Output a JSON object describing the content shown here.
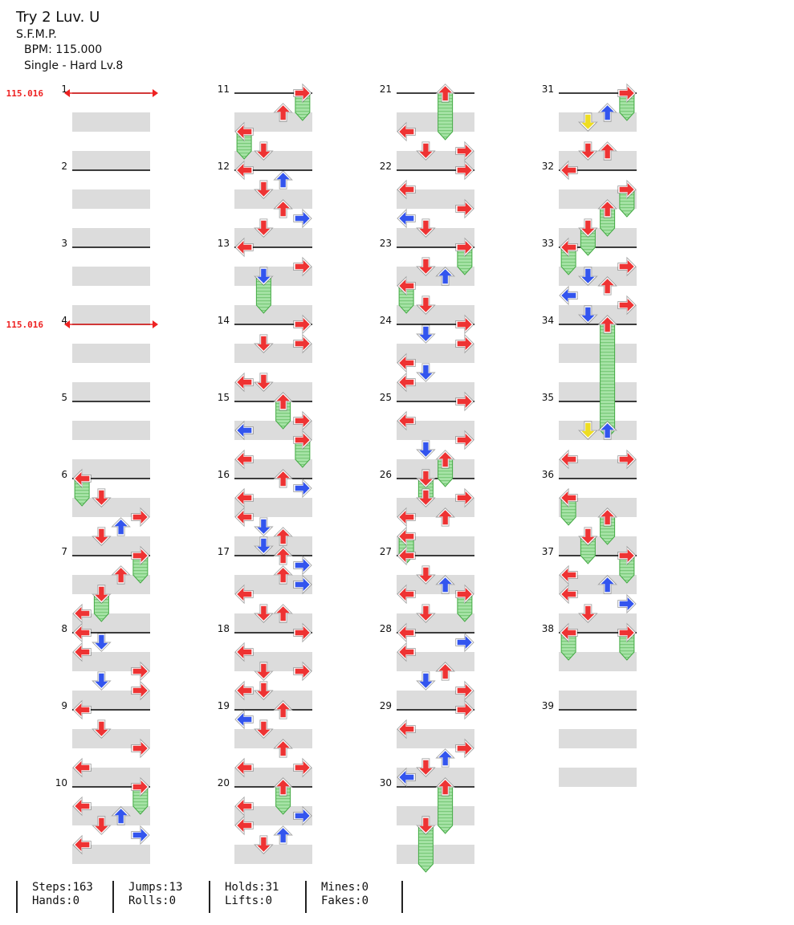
{
  "song": {
    "title": "Try 2 Luv. U",
    "artist": "S.F.M.P.",
    "bpm_text": "BPM: 115.000",
    "difficulty_text": "Single - Hard  Lv.8"
  },
  "bpm_changes": [
    {
      "measure": 1,
      "label": "115.016"
    },
    {
      "measure": 4,
      "label": "115.016"
    }
  ],
  "colors": {
    "quarter_arrow": "#ee3333",
    "eighth_arrow": "#3355ee",
    "sixteenth_arrow": "#eedd22",
    "hold_body": "#99dd99",
    "hold_border": "#44aa44",
    "stripe": "#dcdcdc",
    "bpm_marker": "#ee2222"
  },
  "chart_data": {
    "type": "table",
    "measures_total": 39,
    "measures_per_column": 10,
    "lanes": [
      "left",
      "down",
      "up",
      "right"
    ],
    "rows_per_measure": 4,
    "notes": [
      {
        "m": 6,
        "b": 0,
        "lane": "left",
        "color": "red",
        "hold_beats": 1
      },
      {
        "m": 6,
        "b": 1,
        "lane": "down",
        "color": "red"
      },
      {
        "m": 6,
        "b": 2,
        "lane": "right",
        "color": "red"
      },
      {
        "m": 6,
        "b": 2.5,
        "lane": "up",
        "color": "blue"
      },
      {
        "m": 6,
        "b": 3,
        "lane": "down",
        "color": "red"
      },
      {
        "m": 7,
        "b": 0,
        "lane": "right",
        "color": "red",
        "hold_beats": 1
      },
      {
        "m": 7,
        "b": 1,
        "lane": "up",
        "color": "red"
      },
      {
        "m": 7,
        "b": 2,
        "lane": "down",
        "color": "red",
        "hold_beats": 1
      },
      {
        "m": 7,
        "b": 3,
        "lane": "left",
        "color": "red"
      },
      {
        "m": 8,
        "b": 0,
        "lane": "left",
        "color": "red"
      },
      {
        "m": 8,
        "b": 0.5,
        "lane": "down",
        "color": "blue"
      },
      {
        "m": 8,
        "b": 1,
        "lane": "left",
        "color": "red"
      },
      {
        "m": 8,
        "b": 2,
        "lane": "right",
        "color": "red"
      },
      {
        "m": 8,
        "b": 2.5,
        "lane": "down",
        "color": "blue"
      },
      {
        "m": 8,
        "b": 3,
        "lane": "right",
        "color": "red"
      },
      {
        "m": 9,
        "b": 0,
        "lane": "left",
        "color": "red"
      },
      {
        "m": 9,
        "b": 1,
        "lane": "down",
        "color": "red"
      },
      {
        "m": 9,
        "b": 2,
        "lane": "right",
        "color": "red"
      },
      {
        "m": 9,
        "b": 3,
        "lane": "left",
        "color": "red"
      },
      {
        "m": 10,
        "b": 0,
        "lane": "right",
        "color": "red",
        "hold_beats": 1
      },
      {
        "m": 10,
        "b": 1,
        "lane": "left",
        "color": "red"
      },
      {
        "m": 10,
        "b": 1.5,
        "lane": "up",
        "color": "blue"
      },
      {
        "m": 10,
        "b": 2,
        "lane": "down",
        "color": "red"
      },
      {
        "m": 10,
        "b": 2.5,
        "lane": "right",
        "color": "blue"
      },
      {
        "m": 10,
        "b": 3,
        "lane": "left",
        "color": "red"
      },
      {
        "m": 11,
        "b": 0,
        "lane": "right",
        "color": "red",
        "hold_beats": 1
      },
      {
        "m": 11,
        "b": 1,
        "lane": "up",
        "color": "red"
      },
      {
        "m": 11,
        "b": 2,
        "lane": "left",
        "color": "red",
        "hold_beats": 1
      },
      {
        "m": 11,
        "b": 3,
        "lane": "down",
        "color": "red"
      },
      {
        "m": 12,
        "b": 0,
        "lane": "left",
        "color": "red"
      },
      {
        "m": 12,
        "b": 0.5,
        "lane": "up",
        "color": "blue"
      },
      {
        "m": 12,
        "b": 1,
        "lane": "down",
        "color": "red"
      },
      {
        "m": 12,
        "b": 2,
        "lane": "up",
        "color": "red"
      },
      {
        "m": 12,
        "b": 2.5,
        "lane": "right",
        "color": "blue"
      },
      {
        "m": 12,
        "b": 3,
        "lane": "down",
        "color": "red"
      },
      {
        "m": 13,
        "b": 0,
        "lane": "left",
        "color": "red"
      },
      {
        "m": 13,
        "b": 1,
        "lane": "right",
        "color": "red"
      },
      {
        "m": 13,
        "b": 1.5,
        "lane": "down",
        "color": "blue",
        "hold_beats": 1.5
      },
      {
        "m": 14,
        "b": 0,
        "lane": "right",
        "color": "red"
      },
      {
        "m": 14,
        "b": 1,
        "lane": "down",
        "color": "red"
      },
      {
        "m": 14,
        "b": 1,
        "lane": "right",
        "color": "red"
      },
      {
        "m": 14,
        "b": 3,
        "lane": "left",
        "color": "red"
      },
      {
        "m": 14,
        "b": 3,
        "lane": "down",
        "color": "red"
      },
      {
        "m": 15,
        "b": 0,
        "lane": "up",
        "color": "red",
        "hold_beats": 1
      },
      {
        "m": 15,
        "b": 1,
        "lane": "right",
        "color": "red"
      },
      {
        "m": 15,
        "b": 1.5,
        "lane": "left",
        "color": "blue"
      },
      {
        "m": 15,
        "b": 2,
        "lane": "right",
        "color": "red",
        "hold_beats": 1
      },
      {
        "m": 15,
        "b": 3,
        "lane": "left",
        "color": "red"
      },
      {
        "m": 16,
        "b": 0,
        "lane": "up",
        "color": "red"
      },
      {
        "m": 16,
        "b": 0.5,
        "lane": "right",
        "color": "blue"
      },
      {
        "m": 16,
        "b": 1,
        "lane": "left",
        "color": "red"
      },
      {
        "m": 16,
        "b": 2,
        "lane": "left",
        "color": "red"
      },
      {
        "m": 16,
        "b": 2.5,
        "lane": "down",
        "color": "blue"
      },
      {
        "m": 16,
        "b": 3,
        "lane": "up",
        "color": "red"
      },
      {
        "m": 16,
        "b": 3.5,
        "lane": "down",
        "color": "blue"
      },
      {
        "m": 17,
        "b": 0,
        "lane": "up",
        "color": "red"
      },
      {
        "m": 17,
        "b": 0.5,
        "lane": "right",
        "color": "blue"
      },
      {
        "m": 17,
        "b": 1,
        "lane": "up",
        "color": "red"
      },
      {
        "m": 17,
        "b": 1.5,
        "lane": "right",
        "color": "blue"
      },
      {
        "m": 17,
        "b": 2,
        "lane": "left",
        "color": "red"
      },
      {
        "m": 17,
        "b": 3,
        "lane": "down",
        "color": "red"
      },
      {
        "m": 17,
        "b": 3,
        "lane": "up",
        "color": "red"
      },
      {
        "m": 18,
        "b": 0,
        "lane": "right",
        "color": "red"
      },
      {
        "m": 18,
        "b": 1,
        "lane": "left",
        "color": "red"
      },
      {
        "m": 18,
        "b": 2,
        "lane": "down",
        "color": "red"
      },
      {
        "m": 18,
        "b": 2,
        "lane": "right",
        "color": "red"
      },
      {
        "m": 18,
        "b": 3,
        "lane": "left",
        "color": "red"
      },
      {
        "m": 18,
        "b": 3,
        "lane": "down",
        "color": "red"
      },
      {
        "m": 19,
        "b": 0,
        "lane": "up",
        "color": "red"
      },
      {
        "m": 19,
        "b": 0.5,
        "lane": "left",
        "color": "blue"
      },
      {
        "m": 19,
        "b": 1,
        "lane": "down",
        "color": "red"
      },
      {
        "m": 19,
        "b": 2,
        "lane": "up",
        "color": "red"
      },
      {
        "m": 19,
        "b": 3,
        "lane": "left",
        "color": "red"
      },
      {
        "m": 19,
        "b": 3,
        "lane": "right",
        "color": "red"
      },
      {
        "m": 20,
        "b": 0,
        "lane": "up",
        "color": "red",
        "hold_beats": 1
      },
      {
        "m": 20,
        "b": 1,
        "lane": "left",
        "color": "red"
      },
      {
        "m": 20,
        "b": 1.5,
        "lane": "right",
        "color": "blue"
      },
      {
        "m": 20,
        "b": 2,
        "lane": "left",
        "color": "red"
      },
      {
        "m": 20,
        "b": 2.5,
        "lane": "up",
        "color": "blue"
      },
      {
        "m": 20,
        "b": 3,
        "lane": "down",
        "color": "red"
      },
      {
        "m": 21,
        "b": 0,
        "lane": "up",
        "color": "red",
        "hold_beats": 2
      },
      {
        "m": 21,
        "b": 2,
        "lane": "left",
        "color": "red"
      },
      {
        "m": 21,
        "b": 3,
        "lane": "down",
        "color": "red"
      },
      {
        "m": 21,
        "b": 3,
        "lane": "right",
        "color": "red"
      },
      {
        "m": 22,
        "b": 0,
        "lane": "right",
        "color": "red"
      },
      {
        "m": 22,
        "b": 1,
        "lane": "left",
        "color": "red"
      },
      {
        "m": 22,
        "b": 2,
        "lane": "right",
        "color": "red"
      },
      {
        "m": 22,
        "b": 2.5,
        "lane": "left",
        "color": "blue"
      },
      {
        "m": 22,
        "b": 3,
        "lane": "down",
        "color": "red"
      },
      {
        "m": 23,
        "b": 0,
        "lane": "right",
        "color": "red",
        "hold_beats": 1
      },
      {
        "m": 23,
        "b": 1,
        "lane": "down",
        "color": "red"
      },
      {
        "m": 23,
        "b": 1.5,
        "lane": "up",
        "color": "blue"
      },
      {
        "m": 23,
        "b": 2,
        "lane": "left",
        "color": "red",
        "hold_beats": 1
      },
      {
        "m": 23,
        "b": 3,
        "lane": "down",
        "color": "red"
      },
      {
        "m": 24,
        "b": 0,
        "lane": "right",
        "color": "red"
      },
      {
        "m": 24,
        "b": 0.5,
        "lane": "down",
        "color": "blue"
      },
      {
        "m": 24,
        "b": 1,
        "lane": "right",
        "color": "red"
      },
      {
        "m": 24,
        "b": 2,
        "lane": "left",
        "color": "red"
      },
      {
        "m": 24,
        "b": 2.5,
        "lane": "down",
        "color": "blue"
      },
      {
        "m": 24,
        "b": 3,
        "lane": "left",
        "color": "red"
      },
      {
        "m": 25,
        "b": 0,
        "lane": "right",
        "color": "red"
      },
      {
        "m": 25,
        "b": 1,
        "lane": "left",
        "color": "red"
      },
      {
        "m": 25,
        "b": 2,
        "lane": "right",
        "color": "red"
      },
      {
        "m": 25,
        "b": 2.5,
        "lane": "down",
        "color": "blue"
      },
      {
        "m": 25,
        "b": 3,
        "lane": "up",
        "color": "red",
        "hold_beats": 1
      },
      {
        "m": 26,
        "b": 0,
        "lane": "down",
        "color": "red",
        "hold_beats": 1
      },
      {
        "m": 26,
        "b": 1,
        "lane": "down",
        "color": "red"
      },
      {
        "m": 26,
        "b": 1,
        "lane": "right",
        "color": "red"
      },
      {
        "m": 26,
        "b": 2,
        "lane": "left",
        "color": "red"
      },
      {
        "m": 26,
        "b": 2,
        "lane": "up",
        "color": "red"
      },
      {
        "m": 26,
        "b": 3,
        "lane": "left",
        "color": "red",
        "hold_beats": 1
      },
      {
        "m": 27,
        "b": 0,
        "lane": "left",
        "color": "red"
      },
      {
        "m": 27,
        "b": 1,
        "lane": "down",
        "color": "red"
      },
      {
        "m": 27,
        "b": 1.5,
        "lane": "up",
        "color": "blue"
      },
      {
        "m": 27,
        "b": 2,
        "lane": "left",
        "color": "red"
      },
      {
        "m": 27,
        "b": 2,
        "lane": "right",
        "color": "red",
        "hold_beats": 1
      },
      {
        "m": 27,
        "b": 3,
        "lane": "down",
        "color": "red"
      },
      {
        "m": 28,
        "b": 0,
        "lane": "left",
        "color": "red"
      },
      {
        "m": 28,
        "b": 0.5,
        "lane": "right",
        "color": "blue"
      },
      {
        "m": 28,
        "b": 1,
        "lane": "left",
        "color": "red"
      },
      {
        "m": 28,
        "b": 2,
        "lane": "up",
        "color": "red"
      },
      {
        "m": 28,
        "b": 2.5,
        "lane": "down",
        "color": "blue"
      },
      {
        "m": 28,
        "b": 3,
        "lane": "right",
        "color": "red"
      },
      {
        "m": 29,
        "b": 0,
        "lane": "right",
        "color": "red"
      },
      {
        "m": 29,
        "b": 1,
        "lane": "left",
        "color": "red"
      },
      {
        "m": 29,
        "b": 2,
        "lane": "right",
        "color": "red"
      },
      {
        "m": 29,
        "b": 2.5,
        "lane": "up",
        "color": "blue"
      },
      {
        "m": 29,
        "b": 3,
        "lane": "down",
        "color": "red"
      },
      {
        "m": 29,
        "b": 3.5,
        "lane": "left",
        "color": "blue"
      },
      {
        "m": 30,
        "b": 0,
        "lane": "up",
        "color": "red",
        "hold_beats": 2
      },
      {
        "m": 30,
        "b": 2,
        "lane": "down",
        "color": "red",
        "hold_beats": 2
      },
      {
        "m": 31,
        "b": 0,
        "lane": "right",
        "color": "red",
        "hold_beats": 1
      },
      {
        "m": 31,
        "b": 1,
        "lane": "up",
        "color": "blue"
      },
      {
        "m": 31,
        "b": 1.5,
        "lane": "down",
        "color": "yellow"
      },
      {
        "m": 31,
        "b": 3,
        "lane": "down",
        "color": "red"
      },
      {
        "m": 31,
        "b": 3,
        "lane": "up",
        "color": "red"
      },
      {
        "m": 32,
        "b": 0,
        "lane": "left",
        "color": "red"
      },
      {
        "m": 32,
        "b": 1,
        "lane": "right",
        "color": "red",
        "hold_beats": 1
      },
      {
        "m": 32,
        "b": 2,
        "lane": "up",
        "color": "red",
        "hold_beats": 1
      },
      {
        "m": 32,
        "b": 3,
        "lane": "down",
        "color": "red",
        "hold_beats": 1
      },
      {
        "m": 33,
        "b": 0,
        "lane": "left",
        "color": "red",
        "hold_beats": 1
      },
      {
        "m": 33,
        "b": 1,
        "lane": "right",
        "color": "red"
      },
      {
        "m": 33,
        "b": 1.5,
        "lane": "down",
        "color": "blue"
      },
      {
        "m": 33,
        "b": 2,
        "lane": "up",
        "color": "red"
      },
      {
        "m": 33,
        "b": 2.5,
        "lane": "left",
        "color": "blue"
      },
      {
        "m": 33,
        "b": 3,
        "lane": "right",
        "color": "red"
      },
      {
        "m": 33,
        "b": 3.5,
        "lane": "down",
        "color": "blue"
      },
      {
        "m": 34,
        "b": 0,
        "lane": "up",
        "color": "red",
        "hold_beats": 5.5
      },
      {
        "m": 35,
        "b": 1.5,
        "lane": "down",
        "color": "yellow"
      },
      {
        "m": 35,
        "b": 1.5,
        "lane": "up",
        "color": "blue"
      },
      {
        "m": 35,
        "b": 3,
        "lane": "left",
        "color": "red"
      },
      {
        "m": 35,
        "b": 3,
        "lane": "right",
        "color": "red"
      },
      {
        "m": 36,
        "b": 1,
        "lane": "left",
        "color": "red",
        "hold_beats": 1
      },
      {
        "m": 36,
        "b": 2,
        "lane": "up",
        "color": "red",
        "hold_beats": 1
      },
      {
        "m": 36,
        "b": 3,
        "lane": "down",
        "color": "red",
        "hold_beats": 1
      },
      {
        "m": 37,
        "b": 0,
        "lane": "right",
        "color": "red",
        "hold_beats": 1
      },
      {
        "m": 37,
        "b": 1,
        "lane": "left",
        "color": "red"
      },
      {
        "m": 37,
        "b": 1.5,
        "lane": "up",
        "color": "blue"
      },
      {
        "m": 37,
        "b": 2,
        "lane": "left",
        "color": "red"
      },
      {
        "m": 37,
        "b": 2.5,
        "lane": "right",
        "color": "blue"
      },
      {
        "m": 37,
        "b": 3,
        "lane": "down",
        "color": "red"
      },
      {
        "m": 38,
        "b": 0,
        "lane": "left",
        "color": "red",
        "hold_beats": 1
      },
      {
        "m": 38,
        "b": 0,
        "lane": "right",
        "color": "red",
        "hold_beats": 1
      }
    ]
  },
  "stats": [
    {
      "top": "Steps:163",
      "bottom": "Hands:0"
    },
    {
      "top": "Jumps:13",
      "bottom": "Rolls:0"
    },
    {
      "top": "Holds:31",
      "bottom": "Lifts:0"
    },
    {
      "top": "Mines:0",
      "bottom": "Fakes:0"
    }
  ]
}
